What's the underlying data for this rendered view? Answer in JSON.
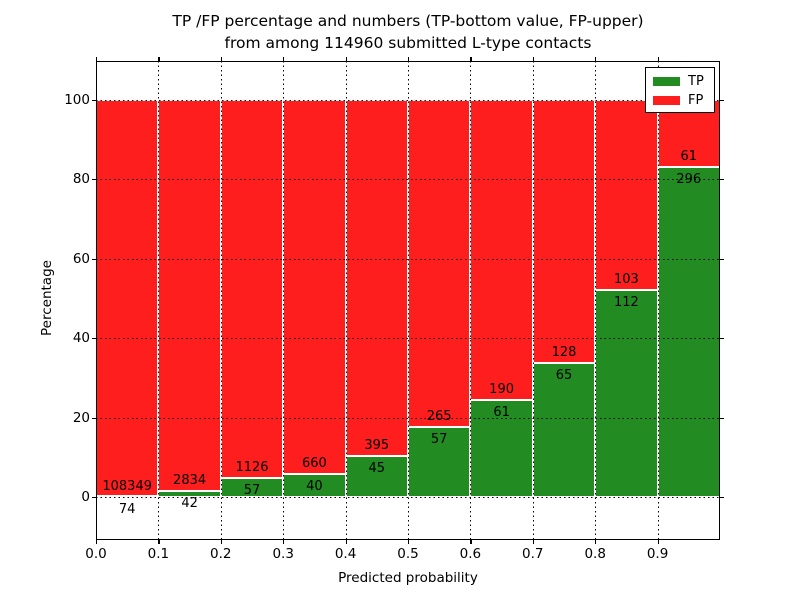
{
  "title_line1": "TP /FP percentage and numbers (TP-bottom value, FP-upper)",
  "title_line2": "from among 114960 submitted L-type contacts",
  "chart_data": {
    "type": "bar",
    "stacked": true,
    "title": "TP /FP percentage and numbers (TP-bottom value, FP-upper) from among 114960 submitted L-type contacts",
    "xlabel": "Predicted probability",
    "ylabel": "Percentage",
    "total_contacts": 114960,
    "bin_start": [
      0.0,
      0.1,
      0.2,
      0.3,
      0.4,
      0.5,
      0.6,
      0.7,
      0.8,
      0.9
    ],
    "bin_width": 0.1,
    "series": [
      {
        "name": "TP",
        "color": "#228b22",
        "counts": [
          74,
          42,
          57,
          40,
          45,
          57,
          61,
          65,
          112,
          296
        ]
      },
      {
        "name": "FP",
        "color": "#ff1e1e",
        "counts": [
          108349,
          2834,
          1126,
          660,
          395,
          265,
          190,
          128,
          103,
          61
        ]
      }
    ],
    "bars_normalized_to_percent": true,
    "x_tick_labels": [
      "0.0",
      "0.1",
      "0.2",
      "0.3",
      "0.4",
      "0.5",
      "0.6",
      "0.7",
      "0.8",
      "0.9"
    ],
    "y_ticks": [
      0,
      20,
      40,
      60,
      80,
      100
    ],
    "xlim": [
      0.0,
      1.0
    ],
    "grid": "dotted black, horizontal and vertical",
    "legend_position": "upper right"
  },
  "legend": {
    "items": [
      {
        "label": "TP",
        "color": "#228b22"
      },
      {
        "label": "FP",
        "color": "#ff1e1e"
      }
    ]
  }
}
